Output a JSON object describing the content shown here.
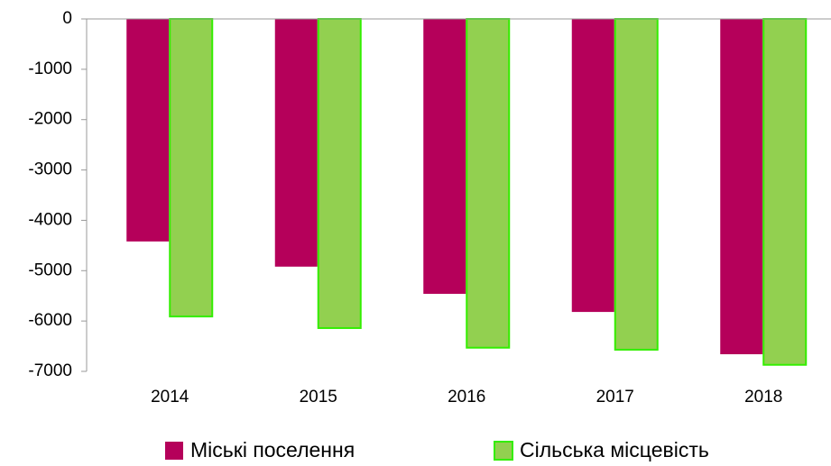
{
  "chart_data": {
    "type": "bar",
    "categories": [
      "2014",
      "2015",
      "2016",
      "2017",
      "2018"
    ],
    "series": [
      {
        "name": "Міські поселення",
        "color": "#b5005a",
        "values": [
          -4420,
          -4920,
          -5460,
          -5820,
          -6660
        ]
      },
      {
        "name": "Сільська місцевість",
        "color": "#92d050",
        "stroke": "#33ee00",
        "values": [
          -5910,
          -6140,
          -6530,
          -6570,
          -6870
        ]
      }
    ],
    "ylim": [
      -7000,
      0
    ],
    "yticks": [
      0,
      -1000,
      -2000,
      -3000,
      -4000,
      -5000,
      -6000,
      -7000
    ],
    "grid": false,
    "legend": "bottom"
  }
}
